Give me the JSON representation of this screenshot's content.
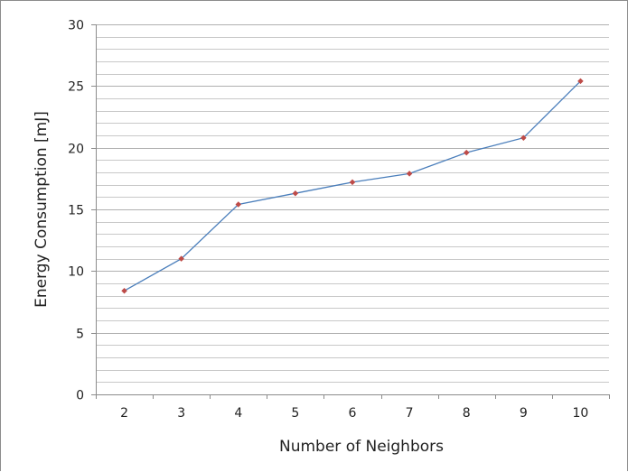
{
  "chart_data": {
    "type": "line",
    "xlabel": "Number of Neighbors",
    "ylabel": "Energy Consumption [mJ]",
    "categories": [
      "2",
      "3",
      "4",
      "5",
      "6",
      "7",
      "8",
      "9",
      "10"
    ],
    "series": [
      {
        "values": [
          8.4,
          11.0,
          15.4,
          16.3,
          17.2,
          17.9,
          19.6,
          20.8,
          25.4
        ],
        "line_color": "#4a7ebb",
        "marker_color": "#be4b48"
      }
    ],
    "ylim": [
      0,
      30
    ],
    "y_major_ticks": [
      0,
      5,
      10,
      15,
      20,
      25,
      30
    ],
    "y_minor_step": 1,
    "grid": true,
    "grid_color": "#c8c8c8",
    "major_grid_color": "#b0b0b0",
    "legend": "none"
  }
}
